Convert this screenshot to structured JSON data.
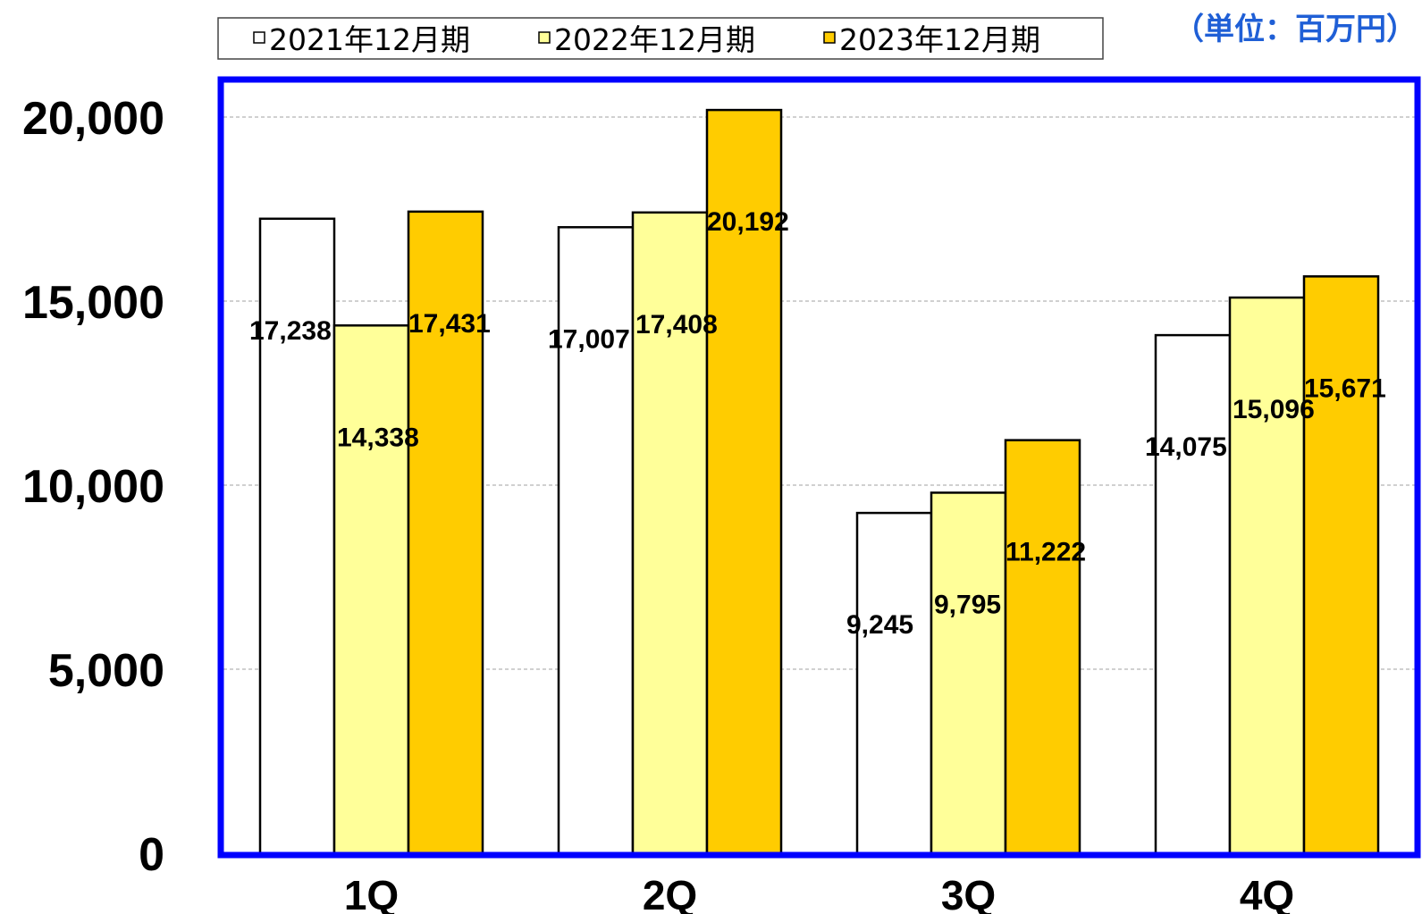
{
  "unit_note": "（単位：百万円）",
  "colors": {
    "frame": "#0000ff",
    "grid": "#a0a0a0",
    "series": [
      "#ffffff",
      "#ffff99",
      "#ffcc00"
    ],
    "unit_text": "#1f5fd6"
  },
  "chart_data": {
    "type": "bar",
    "categories": [
      "1Q",
      "2Q",
      "3Q",
      "4Q"
    ],
    "series": [
      {
        "name": "2021年12月期",
        "values": [
          17238,
          17007,
          9245,
          14075
        ],
        "labels": [
          "17,238",
          "17,007",
          "9,245",
          "14,075"
        ]
      },
      {
        "name": "2022年12月期",
        "values": [
          14338,
          17408,
          9795,
          15096
        ],
        "labels": [
          "14,338",
          "17,408",
          "9,795",
          "15,096"
        ]
      },
      {
        "name": "2023年12月期",
        "values": [
          17431,
          20192,
          11222,
          15671
        ],
        "labels": [
          "17,431",
          "20,192",
          "11,222",
          "15,671"
        ]
      }
    ],
    "ylim": [
      0,
      20000
    ],
    "yticks": [
      0,
      5000,
      10000,
      15000,
      20000
    ],
    "ytick_labels": [
      "0",
      "5,000",
      "10,000",
      "15,000",
      "20,000"
    ],
    "grid": true,
    "legend_position": "top"
  }
}
